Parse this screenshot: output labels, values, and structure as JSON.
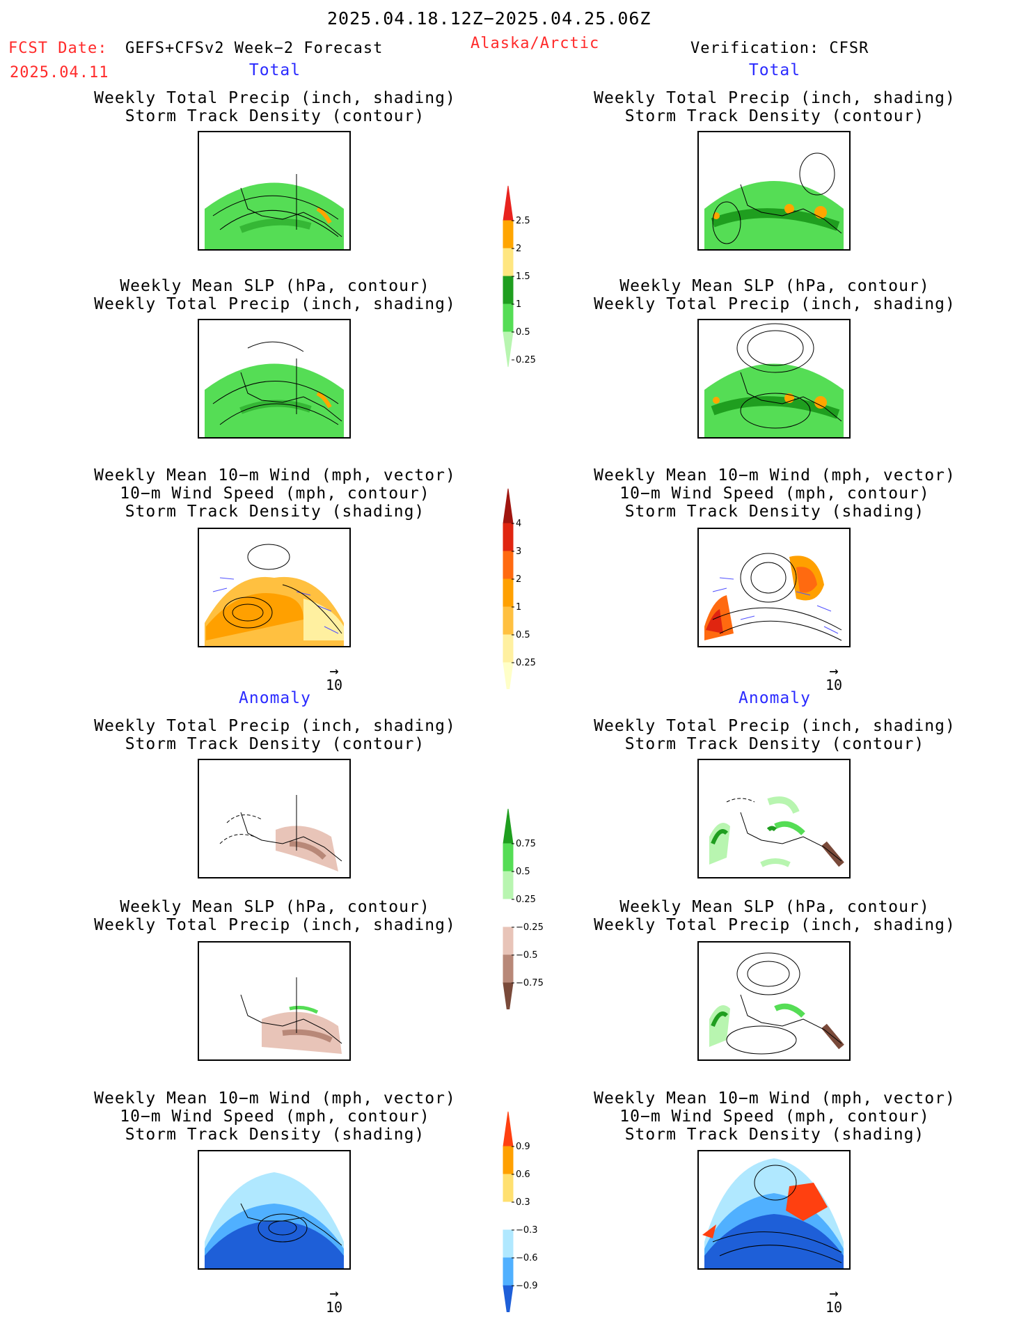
{
  "header": {
    "period": "2025.04.18.12Z−2025.04.25.06Z",
    "fcst_label": "FCST Date:",
    "forecast_name": "GEFS+CFSv2 Week−2 Forecast",
    "fcst_date": "2025.04.11",
    "region": "Alaska/Arctic",
    "verification": "Verification: CFSR"
  },
  "sections": {
    "total": "Total",
    "anomaly": "Anomaly"
  },
  "titles": {
    "precip_track": [
      "Weekly Total Precip (inch, shading)",
      "Storm Track Density (contour)"
    ],
    "slp_precip": [
      "Weekly Mean SLP (hPa, contour)",
      "Weekly Total Precip (inch, shading)"
    ],
    "wind_track": [
      "Weekly Mean 10−m Wind (mph, vector)",
      "10−m Wind Speed (mph, contour)",
      "Storm Track Density (shading)"
    ]
  },
  "reference_vector": "10",
  "colorbars": {
    "precip_total": {
      "labels": [
        "2.5",
        "2",
        "1.5",
        "1",
        "0.5",
        "0.25"
      ],
      "colors": [
        "#e8231e",
        "#ffa500",
        "#ffe680",
        "#1f9e1f",
        "#55dd55",
        "#b8f5b0"
      ]
    },
    "track_total": {
      "labels": [
        "4",
        "3",
        "2",
        "1",
        "0.5",
        "0.25"
      ],
      "colors": [
        "#a0150f",
        "#e02510",
        "#ff6a10",
        "#ffa000",
        "#ffc040",
        "#fff0a0",
        "#ffffc8"
      ]
    },
    "precip_anom": {
      "labels": [
        "0.75",
        "0.5",
        "0.25",
        "−0.25",
        "−0.5",
        "−0.75"
      ],
      "colors": [
        "#1f9e1f",
        "#55dd55",
        "#b8f5b0",
        "#ffffff",
        "#e8c4b8",
        "#b88878",
        "#7a4a3a"
      ]
    },
    "track_anom": {
      "labels": [
        "0.9",
        "0.6",
        "0.3",
        "−0.3",
        "−0.6",
        "−0.9"
      ],
      "colors": [
        "#ff4010",
        "#ffa000",
        "#ffe070",
        "#ffffff",
        "#b0e8ff",
        "#50b0ff",
        "#1e5fd8"
      ]
    }
  }
}
